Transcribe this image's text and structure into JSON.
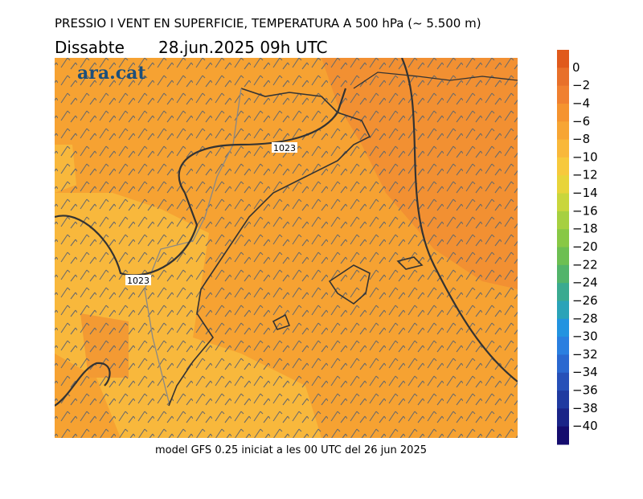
{
  "header": {
    "title": "PRESSIO I VENT EN SUPERFICIE, TEMPERATURA A 500 hPa (~ 5.500 m)",
    "day": "Dissabte",
    "date": "28.jun.2025 09h UTC"
  },
  "map": {
    "logo": "ara.cat",
    "isobar_labels": [
      "1023",
      "1023"
    ]
  },
  "footer": "model GFS 0.25 iniciat a les 00 UTC del 26 jun 2025",
  "colorbar": {
    "labels": [
      "0",
      "−2",
      "−4",
      "−6",
      "−8",
      "−10",
      "−12",
      "−14",
      "−16",
      "−18",
      "−20",
      "−22",
      "−24",
      "−26",
      "−28",
      "−30",
      "−32",
      "−34",
      "−36",
      "−38",
      "−40"
    ],
    "colors": [
      "#e05a1c",
      "#e8702a",
      "#f08030",
      "#f5932f",
      "#f7a534",
      "#f9b83a",
      "#f7c93c",
      "#e8d43a",
      "#c9d63c",
      "#a6d040",
      "#88c845",
      "#6dbf52",
      "#52b46a",
      "#3aaa90",
      "#2aa3b8",
      "#2293e0",
      "#2a7fe0",
      "#2a68d0",
      "#2650b8",
      "#1f3aa0",
      "#1a2488",
      "#140c6e"
    ]
  }
}
